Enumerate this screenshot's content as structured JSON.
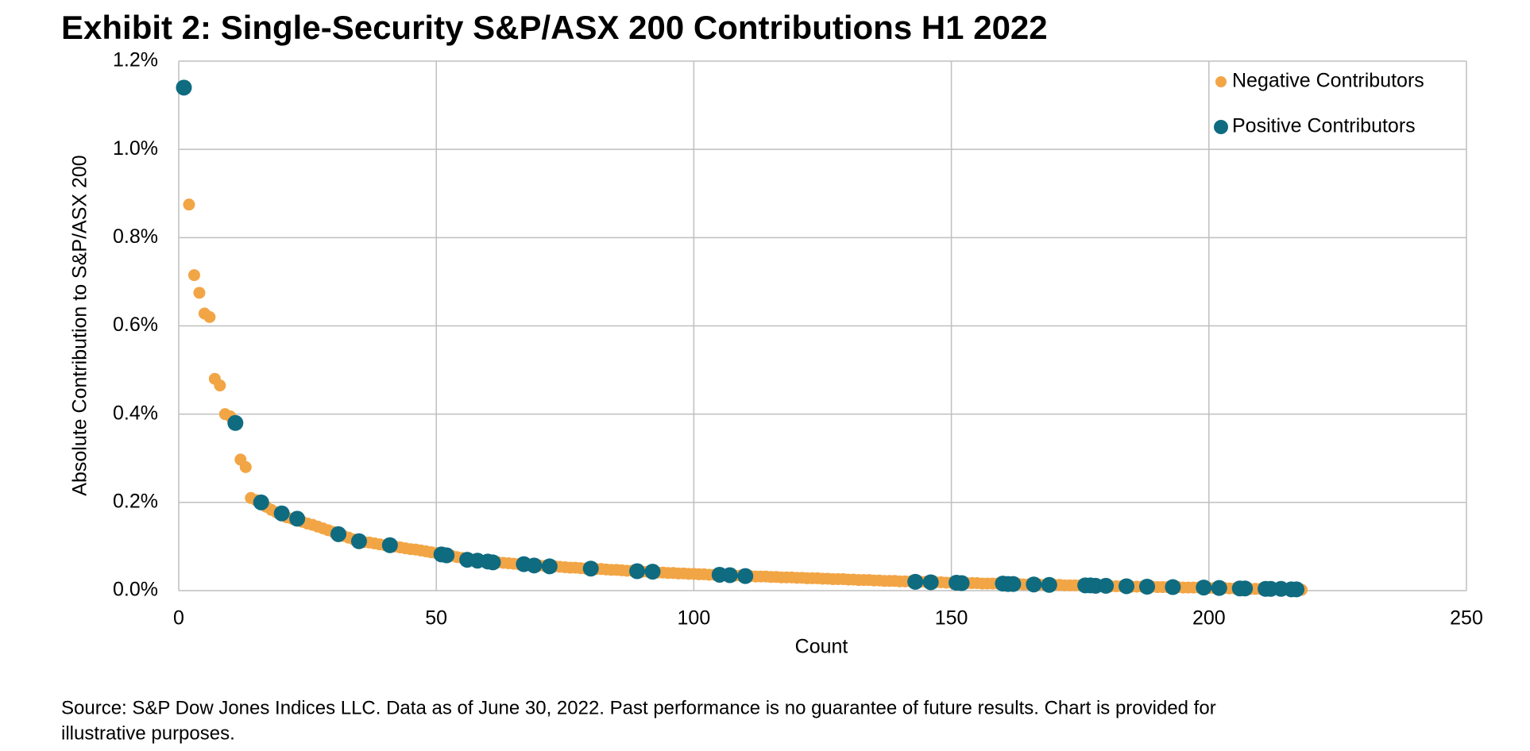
{
  "chart_data": {
    "type": "scatter",
    "title": "Exhibit 2: Single-Security S&P/ASX 200 Contributions H1 2022",
    "xlabel": "Count",
    "ylabel": "Absolute Contribution to S&P/ASX 200",
    "source": [
      "Source: S&P Dow Jones Indices LLC.  Data as of June 30, 2022.  Past performance is no guarantee of future results.  Chart is provided for",
      "illustrative purposes."
    ],
    "xlim": [
      0,
      250
    ],
    "xticks": [
      0,
      50,
      100,
      150,
      200,
      250
    ],
    "ylim": [
      0,
      1.2
    ],
    "yticks": [
      {
        "value": 0,
        "label": "0.0%"
      },
      {
        "value": 0.2,
        "label": "0.2%"
      },
      {
        "value": 0.4,
        "label": "0.4%"
      },
      {
        "value": 0.6,
        "label": "0.6%"
      },
      {
        "value": 0.8,
        "label": "0.8%"
      },
      {
        "value": 1.0,
        "label": "1.0%"
      },
      {
        "value": 1.2,
        "label": "1.2%"
      }
    ],
    "grid": true,
    "legend": "upper right",
    "series": [
      {
        "name": "Negative Contributors",
        "color": "#f2a545",
        "x": [
          2,
          3,
          4,
          5,
          6,
          7,
          8,
          9,
          10,
          12,
          13,
          14,
          15,
          17,
          18,
          19,
          21,
          22,
          24,
          25,
          26,
          27,
          28,
          29,
          30,
          32,
          33,
          34,
          36,
          37,
          38,
          39,
          40,
          42,
          43,
          44,
          45,
          46,
          47,
          48,
          49,
          50,
          53,
          54,
          55,
          57,
          59,
          62,
          63,
          64,
          65,
          66,
          68,
          70,
          71,
          73,
          74,
          75,
          76,
          77,
          78,
          79,
          81,
          82,
          83,
          84,
          85,
          86,
          87,
          88,
          90,
          91,
          93,
          94,
          95,
          96,
          97,
          98,
          99,
          100,
          101,
          102,
          103,
          104,
          106,
          108,
          109,
          111,
          112,
          113,
          114,
          115,
          116,
          117,
          118,
          119,
          120,
          121,
          122,
          123,
          124,
          125,
          126,
          127,
          128,
          129,
          130,
          131,
          132,
          133,
          134,
          135,
          136,
          137,
          138,
          139,
          140,
          141,
          142,
          144,
          145,
          147,
          148,
          149,
          150,
          153,
          154,
          155,
          156,
          157,
          158,
          159,
          163,
          164,
          165,
          167,
          168,
          170,
          171,
          172,
          173,
          174,
          175,
          179,
          181,
          182,
          183,
          185,
          186,
          187,
          189,
          190,
          191,
          192,
          194,
          195,
          196,
          197,
          198,
          200,
          201,
          203,
          204,
          205,
          208,
          209,
          210,
          213,
          215,
          218
        ],
        "values": [
          0.875,
          0.715,
          0.675,
          0.628,
          0.62,
          0.48,
          0.465,
          0.4,
          0.395,
          0.297,
          0.28,
          0.21,
          0.205,
          0.19,
          0.183,
          0.177,
          0.166,
          0.163,
          0.156,
          0.152,
          0.149,
          0.145,
          0.141,
          0.137,
          0.133,
          0.124,
          0.12,
          0.116,
          0.11,
          0.109,
          0.107,
          0.105,
          0.103,
          0.1,
          0.098,
          0.096,
          0.094,
          0.093,
          0.091,
          0.089,
          0.087,
          0.085,
          0.079,
          0.076,
          0.074,
          0.07,
          0.067,
          0.064,
          0.063,
          0.062,
          0.061,
          0.06,
          0.059,
          0.057,
          0.056,
          0.055,
          0.054,
          0.053,
          0.052,
          0.052,
          0.051,
          0.05,
          0.049,
          0.049,
          0.048,
          0.047,
          0.047,
          0.046,
          0.045,
          0.045,
          0.043,
          0.043,
          0.041,
          0.041,
          0.04,
          0.04,
          0.039,
          0.039,
          0.038,
          0.038,
          0.037,
          0.037,
          0.036,
          0.036,
          0.035,
          0.034,
          0.034,
          0.033,
          0.032,
          0.032,
          0.032,
          0.031,
          0.031,
          0.03,
          0.03,
          0.03,
          0.029,
          0.029,
          0.028,
          0.028,
          0.028,
          0.027,
          0.027,
          0.026,
          0.026,
          0.026,
          0.025,
          0.025,
          0.024,
          0.024,
          0.024,
          0.023,
          0.023,
          0.022,
          0.022,
          0.022,
          0.021,
          0.021,
          0.021,
          0.02,
          0.02,
          0.019,
          0.019,
          0.018,
          0.018,
          0.017,
          0.017,
          0.017,
          0.016,
          0.016,
          0.016,
          0.016,
          0.015,
          0.014,
          0.014,
          0.014,
          0.013,
          0.013,
          0.013,
          0.012,
          0.012,
          0.012,
          0.012,
          0.011,
          0.01,
          0.01,
          0.01,
          0.009,
          0.009,
          0.009,
          0.009,
          0.008,
          0.008,
          0.008,
          0.008,
          0.007,
          0.007,
          0.007,
          0.007,
          0.006,
          0.006,
          0.006,
          0.005,
          0.005,
          0.004,
          0.004,
          0.004,
          0.004,
          0.003,
          0.002
        ]
      },
      {
        "name": "Positive Contributors",
        "color": "#0f6b80",
        "x": [
          1,
          11,
          16,
          20,
          23,
          31,
          35,
          41,
          51,
          52,
          56,
          58,
          60,
          61,
          67,
          69,
          72,
          80,
          89,
          92,
          105,
          107,
          110,
          143,
          146,
          151,
          152,
          160,
          161,
          162,
          166,
          169,
          176,
          177,
          178,
          180,
          184,
          188,
          193,
          199,
          202,
          206,
          207,
          211,
          212,
          214,
          216,
          217
        ],
        "values": [
          1.14,
          0.38,
          0.2,
          0.175,
          0.163,
          0.128,
          0.112,
          0.103,
          0.082,
          0.08,
          0.07,
          0.068,
          0.066,
          0.064,
          0.06,
          0.057,
          0.055,
          0.05,
          0.044,
          0.043,
          0.036,
          0.035,
          0.033,
          0.02,
          0.019,
          0.018,
          0.017,
          0.016,
          0.015,
          0.015,
          0.014,
          0.013,
          0.012,
          0.012,
          0.011,
          0.011,
          0.01,
          0.009,
          0.008,
          0.007,
          0.006,
          0.005,
          0.005,
          0.004,
          0.004,
          0.004,
          0.003,
          0.003
        ]
      }
    ]
  }
}
